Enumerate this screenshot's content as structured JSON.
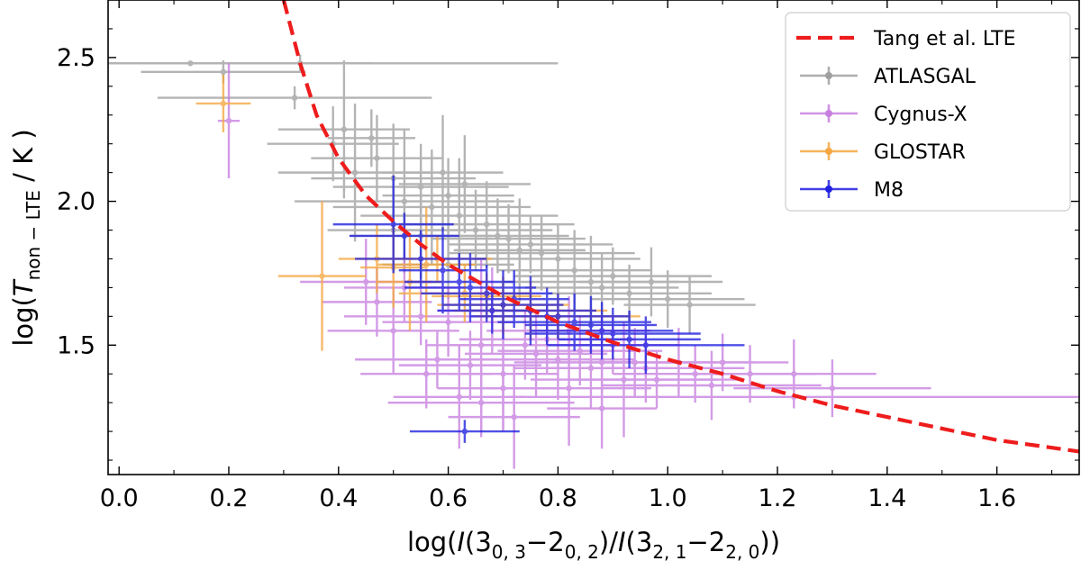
{
  "chart_data": {
    "type": "scatter",
    "title": "",
    "xlabel": {
      "prefix": "log(",
      "i1": "I",
      "a": "(3",
      "a_sub": "0, 3",
      "dash1": "−2",
      "b_sub": "0, 2",
      "mid": ")/",
      "i2": "I",
      "c": "(3",
      "c_sub": "2, 1",
      "dash2": "−2",
      "d_sub": "2, 0",
      "suffix": "))"
    },
    "ylabel": {
      "prefix": "log(",
      "t": "T",
      "sub": "non − LTE",
      "suffix": " / K )"
    },
    "xlim": [
      -0.02,
      1.75
    ],
    "ylim": [
      1.05,
      2.7
    ],
    "xticks": [
      0.0,
      0.2,
      0.4,
      0.6,
      0.8,
      1.0,
      1.2,
      1.4,
      1.6
    ],
    "xtick_labels": [
      "0.0",
      "0.2",
      "0.4",
      "0.6",
      "0.8",
      "1.0",
      "1.2",
      "1.4",
      "1.6"
    ],
    "yticks": [
      1.5,
      2.0,
      2.5
    ],
    "ytick_labels": [
      "1.5",
      "2.0",
      "2.5"
    ],
    "grid": false,
    "legend_position": "top-right",
    "series": [
      {
        "name": "ATLASGAL",
        "color": "#a0a0a0",
        "points": [
          [
            0.13,
            2.48,
            0.33,
            0.0
          ],
          [
            0.19,
            2.45,
            0.15,
            0.04
          ],
          [
            0.33,
            2.48,
            0.47,
            0.03
          ],
          [
            0.32,
            2.36,
            0.25,
            0.04
          ],
          [
            0.39,
            2.2,
            0.12,
            0.13
          ],
          [
            0.41,
            2.25,
            0.12,
            0.24
          ],
          [
            0.43,
            2.1,
            0.14,
            0.24
          ],
          [
            0.46,
            2.22,
            0.08,
            0.1
          ],
          [
            0.47,
            2.15,
            0.12,
            0.15
          ],
          [
            0.5,
            2.08,
            0.15,
            0.19
          ],
          [
            0.52,
            2.0,
            0.2,
            0.25
          ],
          [
            0.55,
            2.05,
            0.16,
            0.15
          ],
          [
            0.57,
            1.98,
            0.18,
            0.2
          ],
          [
            0.59,
            2.1,
            0.11,
            0.2
          ],
          [
            0.6,
            2.02,
            0.12,
            0.13
          ],
          [
            0.62,
            1.95,
            0.18,
            0.2
          ],
          [
            0.63,
            2.06,
            0.12,
            0.17
          ],
          [
            0.65,
            1.9,
            0.14,
            0.14
          ],
          [
            0.67,
            1.92,
            0.16,
            0.15
          ],
          [
            0.69,
            1.88,
            0.13,
            0.13
          ],
          [
            0.71,
            1.87,
            0.14,
            0.12
          ],
          [
            0.73,
            1.83,
            0.12,
            0.18
          ],
          [
            0.75,
            1.85,
            0.15,
            0.1
          ],
          [
            0.77,
            1.82,
            0.17,
            0.13
          ],
          [
            0.8,
            1.8,
            0.15,
            0.12
          ],
          [
            0.83,
            1.76,
            0.14,
            0.14
          ],
          [
            0.86,
            1.72,
            0.16,
            0.16
          ],
          [
            0.88,
            1.7,
            0.14,
            0.12
          ],
          [
            0.9,
            1.74,
            0.18,
            0.1
          ],
          [
            0.93,
            1.68,
            0.15,
            0.1
          ],
          [
            0.97,
            1.72,
            0.13,
            0.12
          ],
          [
            1.0,
            1.66,
            0.14,
            0.1
          ],
          [
            1.04,
            1.64,
            0.12,
            0.1
          ],
          [
            0.6,
            1.78,
            0.12,
            0.12
          ],
          [
            0.5,
            1.9,
            0.12,
            0.1
          ],
          [
            0.55,
            1.88,
            0.13,
            0.15
          ]
        ]
      },
      {
        "name": "Cygnus-X",
        "color": "#c77fdf",
        "points": [
          [
            0.2,
            2.28,
            0.02,
            0.2
          ],
          [
            0.58,
            1.45,
            0.15,
            0.1
          ],
          [
            0.62,
            1.32,
            0.12,
            0.18
          ],
          [
            0.64,
            1.43,
            0.13,
            0.12
          ],
          [
            0.66,
            1.3,
            0.17,
            0.12
          ],
          [
            0.7,
            1.4,
            0.1,
            0.2
          ],
          [
            0.72,
            1.25,
            0.12,
            0.18
          ],
          [
            0.74,
            1.5,
            0.14,
            0.12
          ],
          [
            0.76,
            1.47,
            0.13,
            0.15
          ],
          [
            0.78,
            1.52,
            0.16,
            0.12
          ],
          [
            0.8,
            1.45,
            0.14,
            0.14
          ],
          [
            0.82,
            1.55,
            0.15,
            0.12
          ],
          [
            0.84,
            1.48,
            0.15,
            0.12
          ],
          [
            0.86,
            1.42,
            0.14,
            0.14
          ],
          [
            0.88,
            1.44,
            0.16,
            0.16
          ],
          [
            0.9,
            1.5,
            0.12,
            0.1
          ],
          [
            0.92,
            1.38,
            0.17,
            0.2
          ],
          [
            0.94,
            1.44,
            0.15,
            0.12
          ],
          [
            0.96,
            1.42,
            0.18,
            0.12
          ],
          [
            0.98,
            1.38,
            0.16,
            0.1
          ],
          [
            1.02,
            1.44,
            0.14,
            0.12
          ],
          [
            1.05,
            1.4,
            0.15,
            0.1
          ],
          [
            1.08,
            1.36,
            0.2,
            0.12
          ],
          [
            1.1,
            1.44,
            0.12,
            0.1
          ],
          [
            0.5,
            1.55,
            0.12,
            0.15
          ],
          [
            0.47,
            1.65,
            0.1,
            0.12
          ],
          [
            0.45,
            1.72,
            0.12,
            0.15
          ],
          [
            0.55,
            1.6,
            0.14,
            0.1
          ],
          [
            0.6,
            1.58,
            0.12,
            0.12
          ],
          [
            0.68,
            1.62,
            0.1,
            0.15
          ],
          [
            0.52,
            1.7,
            0.11,
            0.12
          ],
          [
            0.66,
            1.5,
            0.1,
            0.3
          ],
          [
            0.7,
            1.35,
            0.12,
            0.14
          ],
          [
            1.23,
            1.32,
            0.52,
            0.0
          ],
          [
            0.82,
            1.35,
            0.15,
            0.2
          ],
          [
            0.88,
            1.28,
            0.1,
            0.14
          ],
          [
            1.15,
            1.4,
            0.12,
            0.1
          ],
          [
            1.23,
            1.4,
            0.15,
            0.12
          ],
          [
            1.3,
            1.35,
            0.18,
            0.1
          ],
          [
            0.56,
            1.4,
            0.12,
            0.12
          ]
        ]
      },
      {
        "name": "GLOSTAR",
        "color": "#f5a742",
        "points": [
          [
            0.19,
            2.34,
            0.05,
            0.1
          ],
          [
            0.37,
            1.74,
            0.08,
            0.26
          ],
          [
            0.47,
            1.8,
            0.07,
            0.12
          ],
          [
            0.5,
            1.77,
            0.06,
            0.14
          ],
          [
            0.53,
            1.72,
            0.06,
            0.17
          ],
          [
            0.56,
            1.78,
            0.09,
            0.2
          ],
          [
            0.58,
            1.8,
            0.1,
            0.08
          ],
          [
            0.63,
            1.68,
            0.12,
            0.1
          ],
          [
            0.67,
            1.67,
            0.1,
            0.08
          ],
          [
            0.7,
            1.64,
            0.12,
            0.1
          ],
          [
            0.75,
            1.62,
            0.14,
            0.1
          ],
          [
            0.8,
            1.6,
            0.15,
            0.08
          ]
        ]
      },
      {
        "name": "M8",
        "color": "#2020e0",
        "points": [
          [
            0.5,
            1.92,
            0.11,
            0.17
          ],
          [
            0.52,
            1.88,
            0.1,
            0.08
          ],
          [
            0.55,
            1.8,
            0.12,
            0.1
          ],
          [
            0.59,
            1.76,
            0.08,
            0.15
          ],
          [
            0.62,
            1.72,
            0.1,
            0.1
          ],
          [
            0.64,
            1.7,
            0.12,
            0.12
          ],
          [
            0.67,
            1.68,
            0.12,
            0.1
          ],
          [
            0.7,
            1.64,
            0.11,
            0.12
          ],
          [
            0.72,
            1.66,
            0.1,
            0.1
          ],
          [
            0.75,
            1.62,
            0.12,
            0.12
          ],
          [
            0.78,
            1.6,
            0.14,
            0.1
          ],
          [
            0.8,
            1.6,
            0.13,
            0.08
          ],
          [
            0.83,
            1.58,
            0.14,
            0.1
          ],
          [
            0.86,
            1.57,
            0.12,
            0.1
          ],
          [
            0.88,
            1.55,
            0.13,
            0.1
          ],
          [
            0.9,
            1.54,
            0.16,
            0.09
          ],
          [
            0.93,
            1.52,
            0.13,
            0.1
          ],
          [
            0.96,
            1.5,
            0.18,
            0.1
          ],
          [
            0.63,
            1.2,
            0.1,
            0.04
          ],
          [
            0.68,
            1.62,
            0.1,
            0.08
          ]
        ]
      },
      {
        "name": "Tang et al. LTE",
        "type": "dashed_line",
        "color": "#ee1c1c",
        "x": [
          0.3,
          0.33,
          0.36,
          0.4,
          0.45,
          0.5,
          0.55,
          0.6,
          0.7,
          0.8,
          0.9,
          1.0,
          1.1,
          1.2,
          1.3,
          1.4,
          1.5,
          1.6,
          1.75
        ],
        "y": [
          2.7,
          2.48,
          2.3,
          2.15,
          2.02,
          1.93,
          1.85,
          1.78,
          1.67,
          1.58,
          1.51,
          1.45,
          1.4,
          1.34,
          1.29,
          1.25,
          1.21,
          1.17,
          1.13
        ]
      }
    ],
    "legend": [
      "Tang et al. LTE",
      "ATLASGAL",
      "Cygnus-X",
      "GLOSTAR",
      "M8"
    ]
  }
}
